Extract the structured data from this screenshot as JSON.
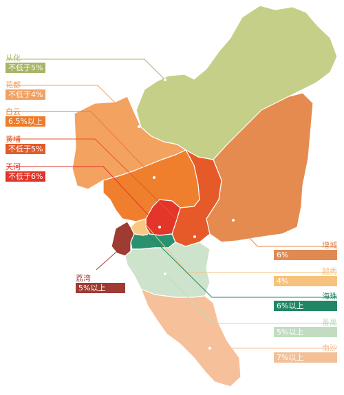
{
  "districts": [
    {
      "key": "conghua",
      "name": "从化",
      "value": "不低于5%",
      "color": "#c5cf87",
      "labelColor": "#a7b566"
    },
    {
      "key": "huadu",
      "name": "花都",
      "value": "不低于4%",
      "color": "#f3a25f",
      "labelColor": "#f0a061"
    },
    {
      "key": "baiyun",
      "name": "白云",
      "value": "6.5%以上",
      "color": "#f07f2d",
      "labelColor": "#ec7c2a"
    },
    {
      "key": "huangpu",
      "name": "黄埔",
      "value": "不低于5%",
      "color": "#e65a2a",
      "labelColor": "#e35a2a"
    },
    {
      "key": "tianhe",
      "name": "天河",
      "value": "不低于6%",
      "color": "#e3352a",
      "labelColor": "#e1352a"
    },
    {
      "key": "liwan",
      "name": "荔湾",
      "value": "5%以上",
      "color": "#9e3b32",
      "labelColor": "#9e3b32"
    },
    {
      "key": "zengcheng",
      "name": "增城",
      "value": "6%",
      "color": "#e58b4f",
      "labelColor": "#e08a52"
    },
    {
      "key": "yuexiu",
      "name": "越秀",
      "value": "4%",
      "color": "#f8c883",
      "labelColor": "#f6c27d"
    },
    {
      "key": "haizhu",
      "name": "海珠",
      "value": "6%以上",
      "color": "#2a9170",
      "labelColor": "#218665"
    },
    {
      "key": "panyu",
      "name": "番禺",
      "value": "5%以上",
      "color": "#cde3cc",
      "labelColor": "#c1dcc0"
    },
    {
      "key": "nansha",
      "name": "南沙",
      "value": "7%以上",
      "color": "#f6c09a",
      "labelColor": "#f3bf97"
    }
  ]
}
